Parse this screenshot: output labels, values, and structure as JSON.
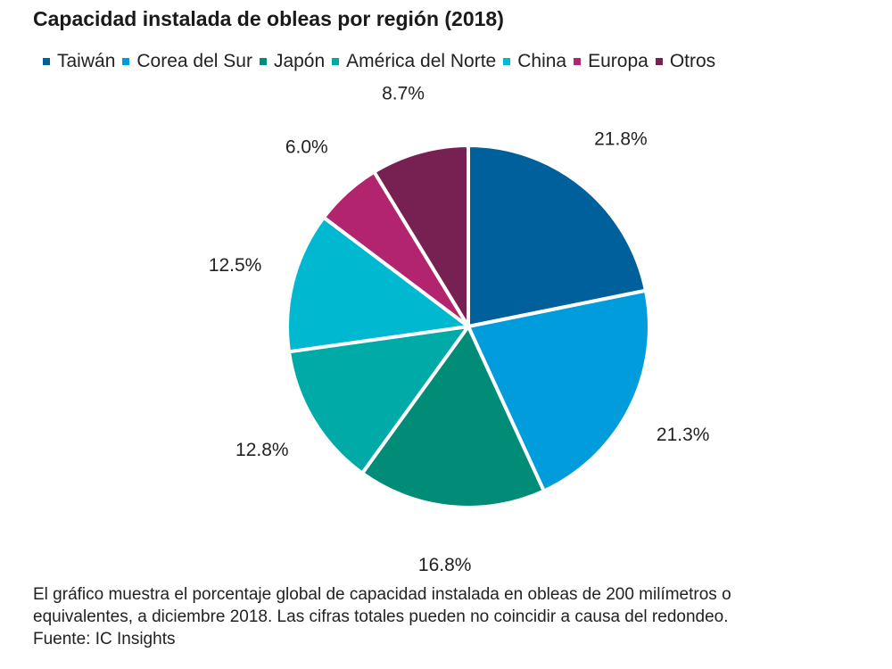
{
  "chart_data": {
    "type": "pie",
    "title": "Capacidad instalada de obleas por región (2018)",
    "categories": [
      "Taiwán",
      "Corea del Sur",
      "Japón",
      "América del Norte",
      "China",
      "Europa",
      "Otros"
    ],
    "values": [
      21.8,
      21.3,
      16.8,
      12.8,
      12.5,
      6.0,
      8.7
    ],
    "value_labels": [
      "21.8%",
      "21.3%",
      "16.8%",
      "12.8%",
      "12.5%",
      "6.0%",
      "8.7%"
    ],
    "colors": [
      "#00609b",
      "#009cdc",
      "#008c77",
      "#00aaa7",
      "#00b9d0",
      "#b3246f",
      "#772152"
    ],
    "legend_position": "top",
    "start_angle": "12 o'clock",
    "direction": "clockwise"
  },
  "caption": {
    "line1": "El gráfico muestra el porcentaje global de capacidad instalada en obleas de 200 milímetros o",
    "line2": "equivalentes, a diciembre 2018. Las cifras totales pueden no coincidir a causa del redondeo.",
    "line3": "Fuente: IC Insights"
  }
}
